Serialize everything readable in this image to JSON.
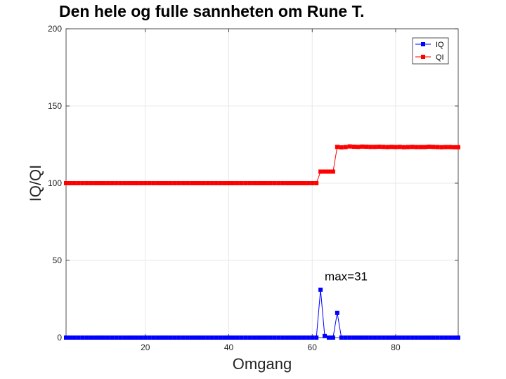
{
  "chart_data": {
    "type": "line",
    "title": "Den hele og fulle sannheten om Rune T.",
    "xlabel": "Omgang",
    "ylabel": "IQ/QI",
    "xlim": [
      1,
      95
    ],
    "ylim": [
      0,
      200
    ],
    "xticks": [
      20,
      40,
      60,
      80
    ],
    "yticks": [
      0,
      50,
      100,
      150,
      200
    ],
    "grid": true,
    "legend_position": "top-right",
    "annotation": {
      "text": "max=31",
      "x": 63,
      "y": 37
    },
    "series": [
      {
        "name": "IQ",
        "color": "#0000ff",
        "marker": "square",
        "x": [
          1,
          2,
          3,
          4,
          5,
          6,
          7,
          8,
          9,
          10,
          11,
          12,
          13,
          14,
          15,
          16,
          17,
          18,
          19,
          20,
          21,
          22,
          23,
          24,
          25,
          26,
          27,
          28,
          29,
          30,
          31,
          32,
          33,
          34,
          35,
          36,
          37,
          38,
          39,
          40,
          41,
          42,
          43,
          44,
          45,
          46,
          47,
          48,
          49,
          50,
          51,
          52,
          53,
          54,
          55,
          56,
          57,
          58,
          59,
          60,
          61,
          62,
          63,
          64,
          65,
          66,
          67,
          68,
          69,
          70,
          71,
          72,
          73,
          74,
          75,
          76,
          77,
          78,
          79,
          80,
          81,
          82,
          83,
          84,
          85,
          86,
          87,
          88,
          89,
          90,
          91,
          92,
          93,
          94,
          95
        ],
        "values": [
          0,
          0,
          0,
          0,
          0,
          0,
          0,
          0,
          0,
          0,
          0,
          0,
          0,
          0,
          0,
          0,
          0,
          0,
          0,
          0,
          0,
          0,
          0,
          0,
          0,
          0,
          0,
          0,
          0,
          0,
          0,
          0,
          0,
          0,
          0,
          0,
          0,
          0,
          0,
          0,
          0,
          0,
          0,
          0,
          0,
          0,
          0,
          0,
          0,
          0,
          0,
          0,
          0,
          0,
          0,
          0,
          0,
          0,
          0,
          0,
          0,
          31,
          1,
          0,
          0,
          16,
          0,
          0,
          0,
          0,
          0,
          0,
          0,
          0,
          0,
          0,
          0,
          0,
          0,
          0,
          0,
          0,
          0,
          0,
          0,
          0,
          0,
          0,
          0,
          0,
          0,
          0,
          0,
          0,
          0
        ]
      },
      {
        "name": "QI",
        "color": "#ff0000",
        "marker": "square",
        "x": [
          1,
          2,
          3,
          4,
          5,
          6,
          7,
          8,
          9,
          10,
          11,
          12,
          13,
          14,
          15,
          16,
          17,
          18,
          19,
          20,
          21,
          22,
          23,
          24,
          25,
          26,
          27,
          28,
          29,
          30,
          31,
          32,
          33,
          34,
          35,
          36,
          37,
          38,
          39,
          40,
          41,
          42,
          43,
          44,
          45,
          46,
          47,
          48,
          49,
          50,
          51,
          52,
          53,
          54,
          55,
          56,
          57,
          58,
          59,
          60,
          61,
          62,
          63,
          64,
          65,
          66,
          67,
          68,
          69,
          70,
          71,
          72,
          73,
          74,
          75,
          76,
          77,
          78,
          79,
          80,
          81,
          82,
          83,
          84,
          85,
          86,
          87,
          88,
          89,
          90,
          91,
          92,
          93,
          94,
          95
        ],
        "values": [
          100,
          100,
          100,
          100,
          100,
          100,
          100,
          100,
          100,
          100,
          100,
          100,
          100,
          100,
          100,
          100,
          100,
          100,
          100,
          100,
          100,
          100,
          100,
          100,
          100,
          100,
          100,
          100,
          100,
          100,
          100,
          100,
          100,
          100,
          100,
          100,
          100,
          100,
          100,
          100,
          100,
          100,
          100,
          100,
          100,
          100,
          100,
          100,
          100,
          100,
          100,
          100,
          100,
          100,
          100,
          100,
          100,
          100,
          100,
          100,
          100,
          107.5,
          107.5,
          107.5,
          107.5,
          123.5,
          123.2,
          123.4,
          123.8,
          123.6,
          123.5,
          123.7,
          123.6,
          123.5,
          123.5,
          123.6,
          123.5,
          123.4,
          123.5,
          123.4,
          123.5,
          123.3,
          123.4,
          123.5,
          123.4,
          123.4,
          123.4,
          123.6,
          123.5,
          123.4,
          123.3,
          123.4,
          123.4,
          123.3,
          123.3
        ]
      }
    ]
  }
}
